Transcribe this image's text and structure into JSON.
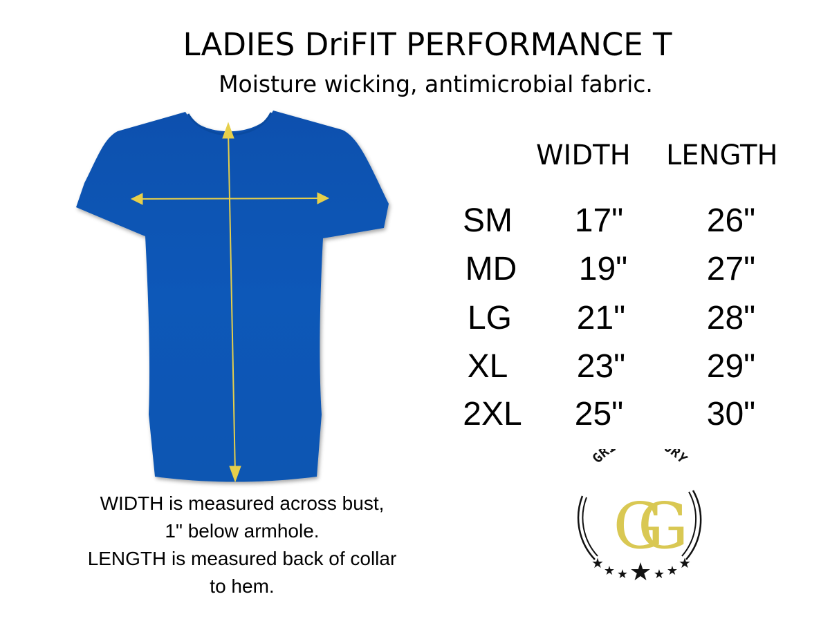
{
  "title": "LADIES DriFIT PERFORMANCE T",
  "subtitle": "Moisture wicking, antimicrobial fabric.",
  "size_table": {
    "headers": {
      "width": "WIDTH",
      "length": "LENGTH"
    },
    "rows": [
      {
        "size": "SM",
        "width": "17\"",
        "length": "26\""
      },
      {
        "size": "MD",
        "width": "19\"",
        "length": "27\""
      },
      {
        "size": "LG",
        "width": "21\"",
        "length": "28\""
      },
      {
        "size": "XL",
        "width": "23\"",
        "length": "29\""
      },
      {
        "size": "2XL",
        "width": "25\"",
        "length": "30\""
      }
    ]
  },
  "caption": [
    "WIDTH is measured across bust,",
    "1\" below armhole.",
    "LENGTH is measured back of collar",
    "to hem."
  ],
  "logo": {
    "text": "GRIT & GLORY",
    "monogram": "GG"
  },
  "colors": {
    "shirt": "#0a55b5",
    "arrow": "#e6cf4a",
    "logo_gold": "#d9c853"
  }
}
